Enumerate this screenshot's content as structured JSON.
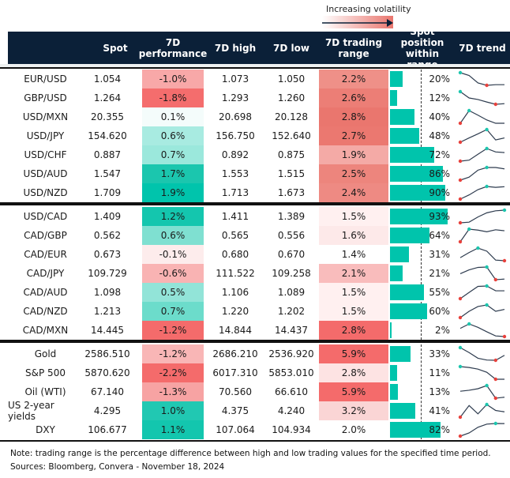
{
  "legend": {
    "label": "Increasing volatility"
  },
  "columns": [
    "Spot",
    "7D performance",
    "7D high",
    "7D low",
    "7D trading range",
    "Spot position within range",
    "7D trend"
  ],
  "colors": {
    "header": "#0b2038",
    "bar": "#00c4ac",
    "trend_line": "#2d3b4e",
    "max_marker": "#1cc6ae",
    "min_marker": "#e8413c"
  },
  "chart_data": {
    "type": "table",
    "groups": [
      {
        "rows": [
          {
            "pair": "EUR/USD",
            "spot": "1.054",
            "perf": "-1.0%",
            "perf_color": "#f8a8a8",
            "high": "1.073",
            "low": "1.050",
            "range": "2.2%",
            "range_color": "#ef9088",
            "position": 20,
            "position_label": "20%",
            "trend": [
              1,
              0.78,
              0.19,
              0,
              0.05,
              0.05
            ]
          },
          {
            "pair": "GBP/USD",
            "spot": "1.264",
            "perf": "-1.8%",
            "perf_color": "#f46d6d",
            "high": "1.293",
            "low": "1.260",
            "range": "2.6%",
            "range_color": "#ec7e76",
            "position": 12,
            "position_label": "12%",
            "trend": [
              1,
              0.5,
              0.38,
              0.18,
              0,
              0.05
            ]
          },
          {
            "pair": "USD/MXN",
            "spot": "20.355",
            "perf": "0.1%",
            "perf_color": "#f4fcfb",
            "high": "20.698",
            "low": "20.128",
            "range": "2.8%",
            "range_color": "#ea766e",
            "position": 40,
            "position_label": "40%",
            "trend": [
              0,
              1,
              0.64,
              0.26,
              0,
              0
            ]
          },
          {
            "pair": "USD/JPY",
            "spot": "154.620",
            "perf": "0.6%",
            "perf_color": "#a8ebe1",
            "high": "156.750",
            "low": "152.640",
            "range": "2.7%",
            "range_color": "#eb7870",
            "position": 48,
            "position_label": "48%",
            "trend": [
              0,
              0.34,
              0.66,
              1,
              0.18,
              0.34
            ]
          },
          {
            "pair": "USD/CHF",
            "spot": "0.887",
            "perf": "0.7%",
            "perf_color": "#9be8dc",
            "high": "0.892",
            "low": "0.875",
            "range": "1.9%",
            "range_color": "#f4aaa6",
            "position": 72,
            "position_label": "72%",
            "trend": [
              0,
              0.08,
              0.55,
              1,
              0.73,
              0.68
            ]
          },
          {
            "pair": "USD/AUD",
            "spot": "1.547",
            "perf": "1.7%",
            "perf_color": "#1bc6ae",
            "high": "1.553",
            "low": "1.515",
            "range": "2.5%",
            "range_color": "#ed857d",
            "position": 86,
            "position_label": "86%",
            "trend": [
              0,
              0.24,
              0.79,
              1,
              1,
              0.89
            ]
          },
          {
            "pair": "USD/NZD",
            "spot": "1.709",
            "perf": "1.9%",
            "perf_color": "#00c4ac",
            "high": "1.713",
            "low": "1.673",
            "range": "2.4%",
            "range_color": "#ee8a83",
            "position": 90,
            "position_label": "90%",
            "trend": [
              0,
              0.33,
              0.75,
              1,
              0.93,
              0.98
            ]
          }
        ]
      },
      {
        "rows": [
          {
            "pair": "USD/CAD",
            "spot": "1.409",
            "perf": "1.2%",
            "perf_color": "#14c6ae",
            "high": "1.411",
            "low": "1.389",
            "range": "1.5%",
            "range_color": "#fff0f0",
            "position": 93,
            "position_label": "93%",
            "trend": [
              0,
              0.05,
              0.46,
              0.79,
              0.95,
              1
            ]
          },
          {
            "pair": "CAD/GBP",
            "spot": "0.562",
            "perf": "0.6%",
            "perf_color": "#7fe0d1",
            "high": "0.565",
            "low": "0.556",
            "range": "1.6%",
            "range_color": "#fde9e9",
            "position": 64,
            "position_label": "64%",
            "trend": [
              0,
              1,
              0.92,
              0.79,
              0.95,
              0.87
            ]
          },
          {
            "pair": "CAD/EUR",
            "spot": "0.673",
            "perf": "-0.1%",
            "perf_color": "#fdecec",
            "high": "0.680",
            "low": "0.670",
            "range": "1.4%",
            "range_color": "#ffffff",
            "position": 31,
            "position_label": "31%",
            "trend": [
              0.24,
              0.65,
              1,
              0.76,
              0.05,
              0
            ]
          },
          {
            "pair": "CAD/JPY",
            "spot": "109.729",
            "perf": "-0.6%",
            "perf_color": "#f9b3b3",
            "high": "111.522",
            "low": "109.258",
            "range": "2.1%",
            "range_color": "#f9bcbc",
            "position": 21,
            "position_label": "21%",
            "trend": [
              0.47,
              0.78,
              0.97,
              1,
              0,
              0.05
            ]
          },
          {
            "pair": "CAD/AUD",
            "spot": "1.098",
            "perf": "0.5%",
            "perf_color": "#92e4d8",
            "high": "1.106",
            "low": "1.089",
            "range": "1.5%",
            "range_color": "#fff0f0",
            "position": 55,
            "position_label": "55%",
            "trend": [
              0,
              0.49,
              0.97,
              1,
              0.62,
              0.62
            ]
          },
          {
            "pair": "CAD/NZD",
            "spot": "1.213",
            "perf": "0.7%",
            "perf_color": "#6cdccb",
            "high": "1.220",
            "low": "1.202",
            "range": "1.5%",
            "range_color": "#fff0f0",
            "position": 60,
            "position_label": "60%",
            "trend": [
              0,
              0.5,
              0.88,
              1,
              0.5,
              0.65
            ]
          },
          {
            "pair": "CAD/MXN",
            "spot": "14.445",
            "perf": "-1.2%",
            "perf_color": "#f46b6b",
            "high": "14.844",
            "low": "14.437",
            "range": "2.8%",
            "range_color": "#f46b6b",
            "position": 2,
            "position_label": "2%",
            "trend": [
              0.65,
              1,
              0.73,
              0.38,
              0.05,
              0
            ]
          }
        ]
      },
      {
        "rows": [
          {
            "pair": "Gold",
            "spot": "2586.510",
            "perf": "-1.2%",
            "perf_color": "#f9b6b6",
            "high": "2686.210",
            "low": "2536.920",
            "range": "5.9%",
            "range_color": "#f46b6b",
            "position": 33,
            "position_label": "33%",
            "trend": [
              1,
              0.61,
              0.16,
              0.02,
              0,
              0.39
            ]
          },
          {
            "pair": "S&P 500",
            "spot": "5870.620",
            "perf": "-2.2%",
            "perf_color": "#f46b6b",
            "high": "6017.310",
            "low": "5853.010",
            "range": "2.8%",
            "range_color": "#fde3e3",
            "position": 11,
            "position_label": "11%",
            "trend": [
              1,
              0.93,
              0.8,
              0.55,
              0,
              0
            ]
          },
          {
            "pair": "Oil (WTI)",
            "spot": "67.140",
            "perf": "-1.3%",
            "perf_color": "#f7a3a3",
            "high": "70.560",
            "low": "66.610",
            "range": "5.9%",
            "range_color": "#f46b6b",
            "position": 13,
            "position_label": "13%",
            "trend": [
              0.55,
              0.63,
              0.75,
              1,
              0,
              0.08
            ]
          },
          {
            "pair": "US 2-year yields",
            "spot": "4.295",
            "perf": "1.0%",
            "perf_color": "#21c8b2",
            "high": "4.375",
            "low": "4.240",
            "range": "3.2%",
            "range_color": "#fad5d5",
            "position": 41,
            "position_label": "41%",
            "trend": [
              0,
              0.92,
              0.26,
              1,
              0.53,
              0.42
            ]
          },
          {
            "pair": "DXY",
            "spot": "106.677",
            "perf": "1.1%",
            "perf_color": "#13c6ae",
            "high": "107.064",
            "low": "104.934",
            "range": "2.0%",
            "range_color": "#ffffff",
            "position": 82,
            "position_label": "82%",
            "trend": [
              0,
              0.25,
              0.7,
              0.95,
              1,
              0.99
            ]
          }
        ]
      }
    ]
  },
  "notes": {
    "note": "Note: trading range is the percentage difference between high and low trading values for the specified time period.",
    "sources": "Sources: Bloomberg, Convera - November 18, 2024"
  }
}
